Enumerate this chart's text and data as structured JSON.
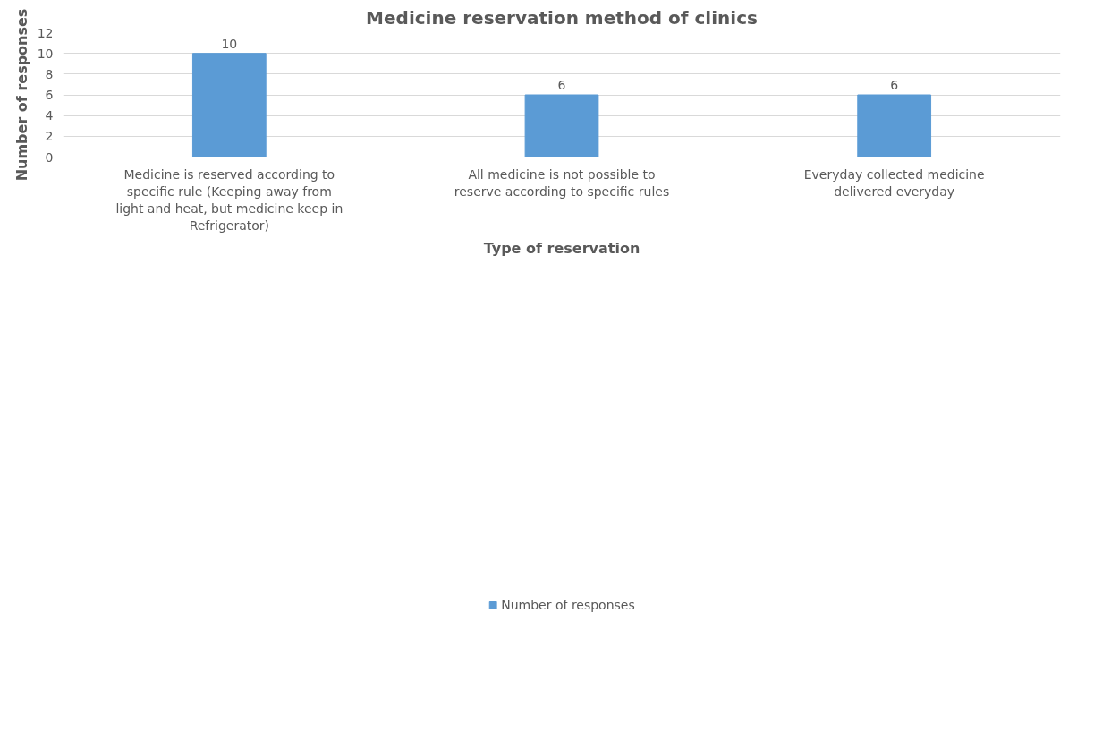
{
  "chart_data": {
    "type": "bar",
    "title": "Medicine reservation method of clinics",
    "xlabel": "Type of reservation",
    "ylabel": "Number of responses",
    "categories": [
      "Medicine is reserved according to specific rule (Keeping away from light and heat, but medicine keep in Refrigerator)",
      "All medicine is not possible to reserve according to specific rules",
      "Everyday collected medicine delivered everyday"
    ],
    "series": [
      {
        "name": "Number of responses",
        "color": "#5b9bd5",
        "values": [
          10,
          6,
          6
        ]
      }
    ],
    "ylim": [
      0,
      12
    ],
    "yticks": [
      0,
      2,
      4,
      6,
      8,
      10,
      12
    ],
    "grid": "y",
    "legend": "bottom",
    "data_labels": true
  }
}
